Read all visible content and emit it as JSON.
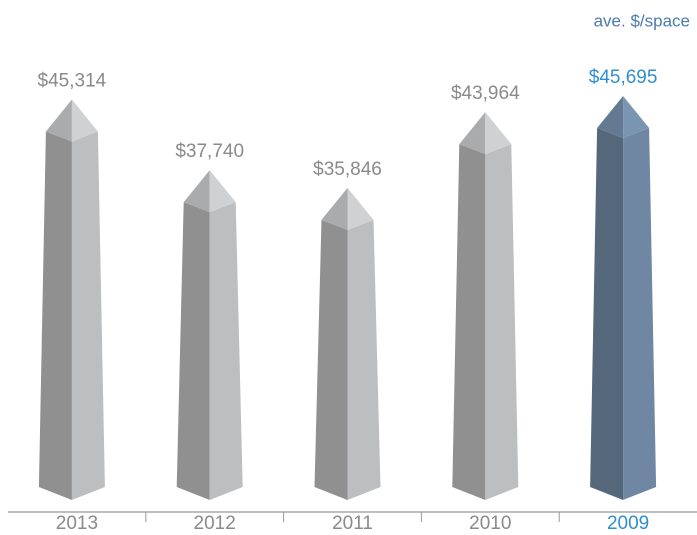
{
  "chart_data": {
    "type": "obelisk",
    "title": "ave. $/space",
    "categories": [
      "2013",
      "2012",
      "2011",
      "2010",
      "2009"
    ],
    "values": [
      45314,
      37740,
      35846,
      43964,
      45695
    ],
    "value_labels": [
      "$45,314",
      "$37,740",
      "$35,846",
      "$43,964",
      "$45,695"
    ],
    "colors": [
      "#bdbebf",
      "#bdbebf",
      "#bdbebf",
      "#bdbebf",
      "#6f87a2"
    ],
    "label_colors": [
      "#8a8a8a",
      "#8a8a8a",
      "#8a8a8a",
      "#8a8a8a",
      "#2f8fcf"
    ]
  }
}
